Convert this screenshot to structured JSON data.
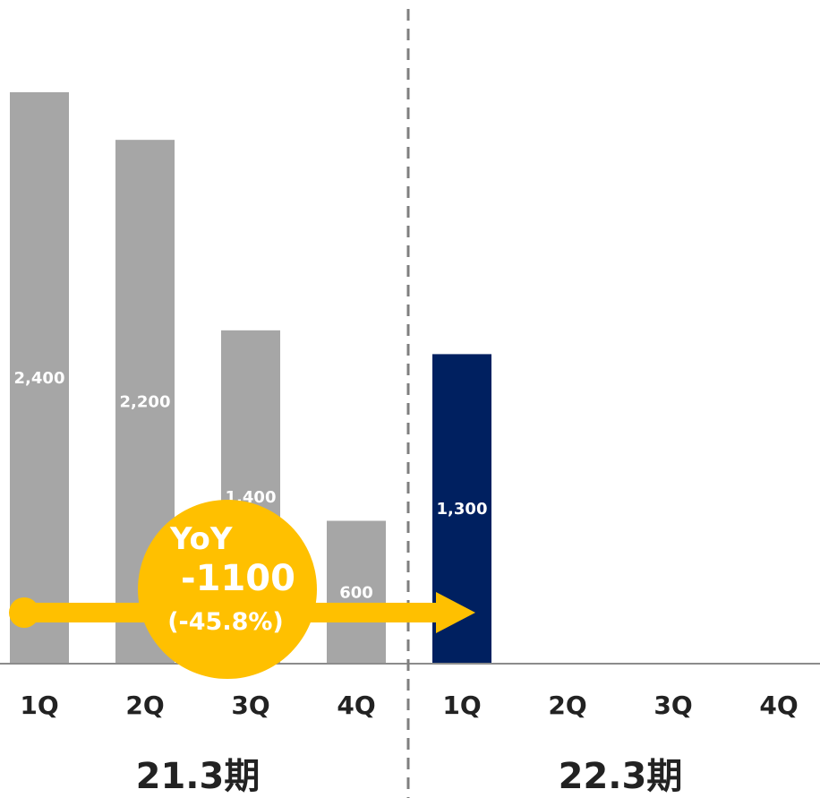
{
  "chart_data": {
    "type": "bar",
    "categories": [
      "1Q",
      "2Q",
      "3Q",
      "4Q",
      "1Q",
      "2Q",
      "3Q",
      "4Q"
    ],
    "values": [
      2400,
      2200,
      1400,
      600,
      1300,
      null,
      null,
      null
    ],
    "value_labels": [
      "2,400",
      "2,200",
      "1,400",
      "600",
      "1,300",
      "",
      "",
      ""
    ],
    "groups": [
      {
        "label": "21.3期",
        "range": [
          0,
          3
        ]
      },
      {
        "label": "22.3期",
        "range": [
          4,
          7
        ]
      }
    ],
    "colors": {
      "previous": "#a6a6a6",
      "current": "#002060",
      "accent": "#ffc000",
      "divider": "#7f7f7f"
    },
    "annotation": {
      "line1": "YoY",
      "line2": "-1100",
      "line3": "(-45.8%)",
      "from_index": 0,
      "to_index": 4
    },
    "grid": false,
    "legend": "none"
  }
}
